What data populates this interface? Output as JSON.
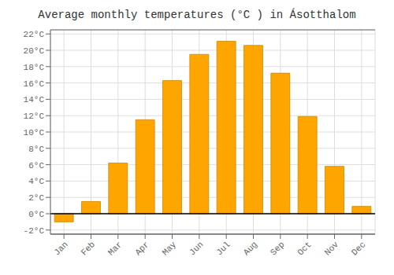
{
  "chart_data": {
    "type": "bar",
    "title": "Average monthly temperatures (°C ) in Ásotthalom",
    "categories": [
      "Jan",
      "Feb",
      "Mar",
      "Apr",
      "May",
      "Jun",
      "Jul",
      "Aug",
      "Sep",
      "Oct",
      "Nov",
      "Dec"
    ],
    "values": [
      -1.0,
      1.5,
      6.2,
      11.5,
      16.3,
      19.5,
      21.1,
      20.6,
      17.2,
      11.9,
      5.8,
      0.9
    ],
    "color": "#FFA500",
    "ylim": [
      -2.5,
      22.5
    ],
    "yticks": [
      {
        "value": -2,
        "label": "-2°C"
      },
      {
        "value": 0,
        "label": "0°C"
      },
      {
        "value": 2,
        "label": "2°C"
      },
      {
        "value": 4,
        "label": "4°C"
      },
      {
        "value": 6,
        "label": "6°C"
      },
      {
        "value": 8,
        "label": "8°C"
      },
      {
        "value": 10,
        "label": "10°C"
      },
      {
        "value": 12,
        "label": "12°C"
      },
      {
        "value": 14,
        "label": "14°C"
      },
      {
        "value": 16,
        "label": "16°C"
      },
      {
        "value": 18,
        "label": "18°C"
      },
      {
        "value": 20,
        "label": "20°C"
      },
      {
        "value": 22,
        "label": "22°C"
      }
    ],
    "grid": true
  }
}
